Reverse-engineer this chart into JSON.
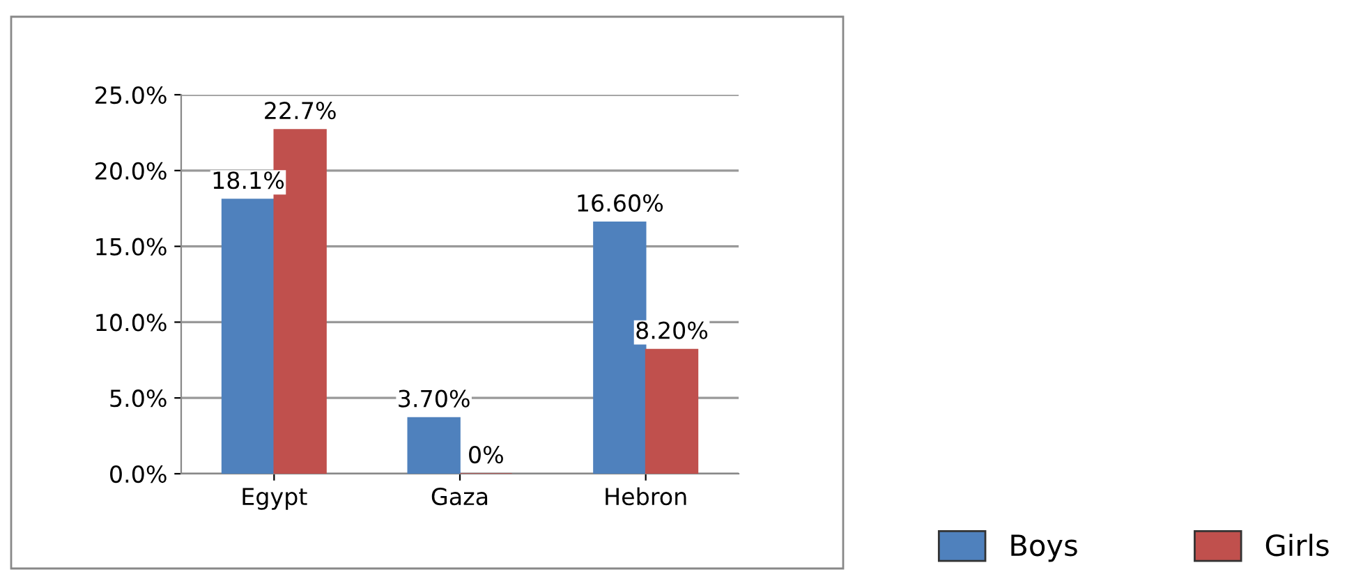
{
  "chart_data": {
    "type": "bar",
    "categories": [
      "Egypt",
      "Gaza",
      "Hebron"
    ],
    "series": [
      {
        "name": "Boys",
        "color": "#4f81bd",
        "values": [
          18.1,
          3.7,
          16.6
        ],
        "value_labels": [
          "18.1%",
          "3.70%",
          "16.60%"
        ]
      },
      {
        "name": "Girls",
        "color": "#c0504d",
        "values": [
          22.7,
          0,
          8.2
        ],
        "value_labels": [
          "22.7%",
          "0%",
          "8.20%"
        ]
      }
    ],
    "ylim": [
      0,
      25
    ],
    "yticks": [
      {
        "value": 0,
        "label": "0.0%"
      },
      {
        "value": 5,
        "label": "5.0%"
      },
      {
        "value": 10,
        "label": "10.0%"
      },
      {
        "value": 15,
        "label": "15.0%"
      },
      {
        "value": 20,
        "label": "20.0%"
      },
      {
        "value": 25,
        "label": "25.0%"
      }
    ],
    "grid": "y",
    "legend": "bottom right"
  }
}
